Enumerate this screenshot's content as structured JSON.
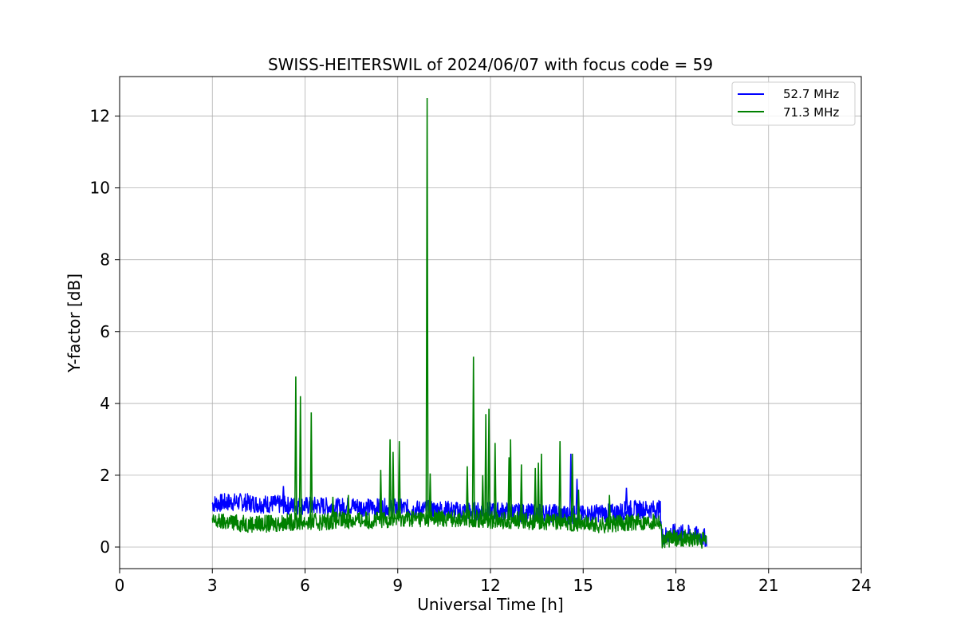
{
  "chart_data": {
    "type": "line",
    "title": "SWISS-HEITERSWIL of 2024/06/07 with focus code = 59",
    "xlabel": "Universal Time [h]",
    "ylabel": "Y-factor [dB]",
    "xlim": [
      0,
      24
    ],
    "ylim": [
      -0.6,
      13.1
    ],
    "xticks": [
      0,
      3,
      6,
      9,
      12,
      15,
      18,
      21,
      24
    ],
    "yticks": [
      0,
      2,
      4,
      6,
      8,
      10,
      12
    ],
    "grid": true,
    "legend_position": "top-right",
    "series": [
      {
        "name": "52.7 MHz",
        "color": "#0000ff",
        "x": [
          3.0,
          3.5,
          4.0,
          4.5,
          5.0,
          5.5,
          6.0,
          6.5,
          7.0,
          7.5,
          8.0,
          8.5,
          9.0,
          9.5,
          10.0,
          10.5,
          11.0,
          11.5,
          12.0,
          12.5,
          13.0,
          13.5,
          14.0,
          14.5,
          15.0,
          15.5,
          16.0,
          16.5,
          17.0,
          17.5,
          17.55,
          18.0,
          18.5,
          19.0
        ],
        "y": [
          1.2,
          1.25,
          1.25,
          1.2,
          1.2,
          1.15,
          1.15,
          1.15,
          1.1,
          1.15,
          1.1,
          1.1,
          1.1,
          1.05,
          1.05,
          1.05,
          1.0,
          1.0,
          1.0,
          1.0,
          0.95,
          0.95,
          0.95,
          0.9,
          0.9,
          0.95,
          0.95,
          1.05,
          1.05,
          1.05,
          0.3,
          0.4,
          0.35,
          0.25
        ],
        "spikes": [
          {
            "x": 5.3,
            "y": 1.7
          },
          {
            "x": 14.6,
            "y": 2.6
          },
          {
            "x": 14.8,
            "y": 1.9
          },
          {
            "x": 16.4,
            "y": 1.65
          }
        ]
      },
      {
        "name": "71.3 MHz",
        "color": "#008000",
        "x": [
          3.0,
          3.5,
          4.0,
          4.5,
          5.0,
          5.5,
          6.0,
          6.5,
          7.0,
          7.5,
          8.0,
          8.5,
          9.0,
          9.5,
          10.0,
          10.5,
          11.0,
          11.5,
          12.0,
          12.5,
          13.0,
          13.5,
          14.0,
          14.5,
          15.0,
          15.5,
          16.0,
          16.5,
          17.0,
          17.5,
          17.55,
          18.0,
          18.5,
          19.0
        ],
        "y": [
          0.7,
          0.7,
          0.65,
          0.65,
          0.65,
          0.7,
          0.7,
          0.7,
          0.75,
          0.75,
          0.75,
          0.75,
          0.8,
          0.8,
          0.8,
          0.8,
          0.8,
          0.8,
          0.75,
          0.75,
          0.75,
          0.7,
          0.7,
          0.7,
          0.65,
          0.6,
          0.65,
          0.7,
          0.7,
          0.75,
          0.2,
          0.25,
          0.25,
          0.15
        ],
        "spikes": [
          {
            "x": 5.7,
            "y": 4.75
          },
          {
            "x": 5.85,
            "y": 4.2
          },
          {
            "x": 6.2,
            "y": 3.75
          },
          {
            "x": 6.9,
            "y": 1.4
          },
          {
            "x": 7.4,
            "y": 1.45
          },
          {
            "x": 8.45,
            "y": 2.15
          },
          {
            "x": 8.75,
            "y": 3.0
          },
          {
            "x": 8.85,
            "y": 2.65
          },
          {
            "x": 9.05,
            "y": 2.95
          },
          {
            "x": 9.95,
            "y": 12.5
          },
          {
            "x": 10.05,
            "y": 2.05
          },
          {
            "x": 11.25,
            "y": 2.25
          },
          {
            "x": 11.45,
            "y": 5.3
          },
          {
            "x": 11.75,
            "y": 2.0
          },
          {
            "x": 11.85,
            "y": 3.7
          },
          {
            "x": 11.95,
            "y": 3.85
          },
          {
            "x": 12.15,
            "y": 2.9
          },
          {
            "x": 12.6,
            "y": 2.5
          },
          {
            "x": 12.65,
            "y": 3.0
          },
          {
            "x": 13.0,
            "y": 2.3
          },
          {
            "x": 13.45,
            "y": 2.2
          },
          {
            "x": 13.55,
            "y": 2.35
          },
          {
            "x": 13.65,
            "y": 2.6
          },
          {
            "x": 14.25,
            "y": 2.95
          },
          {
            "x": 14.65,
            "y": 2.6
          },
          {
            "x": 14.85,
            "y": 1.6
          },
          {
            "x": 15.85,
            "y": 1.45
          }
        ]
      }
    ]
  }
}
